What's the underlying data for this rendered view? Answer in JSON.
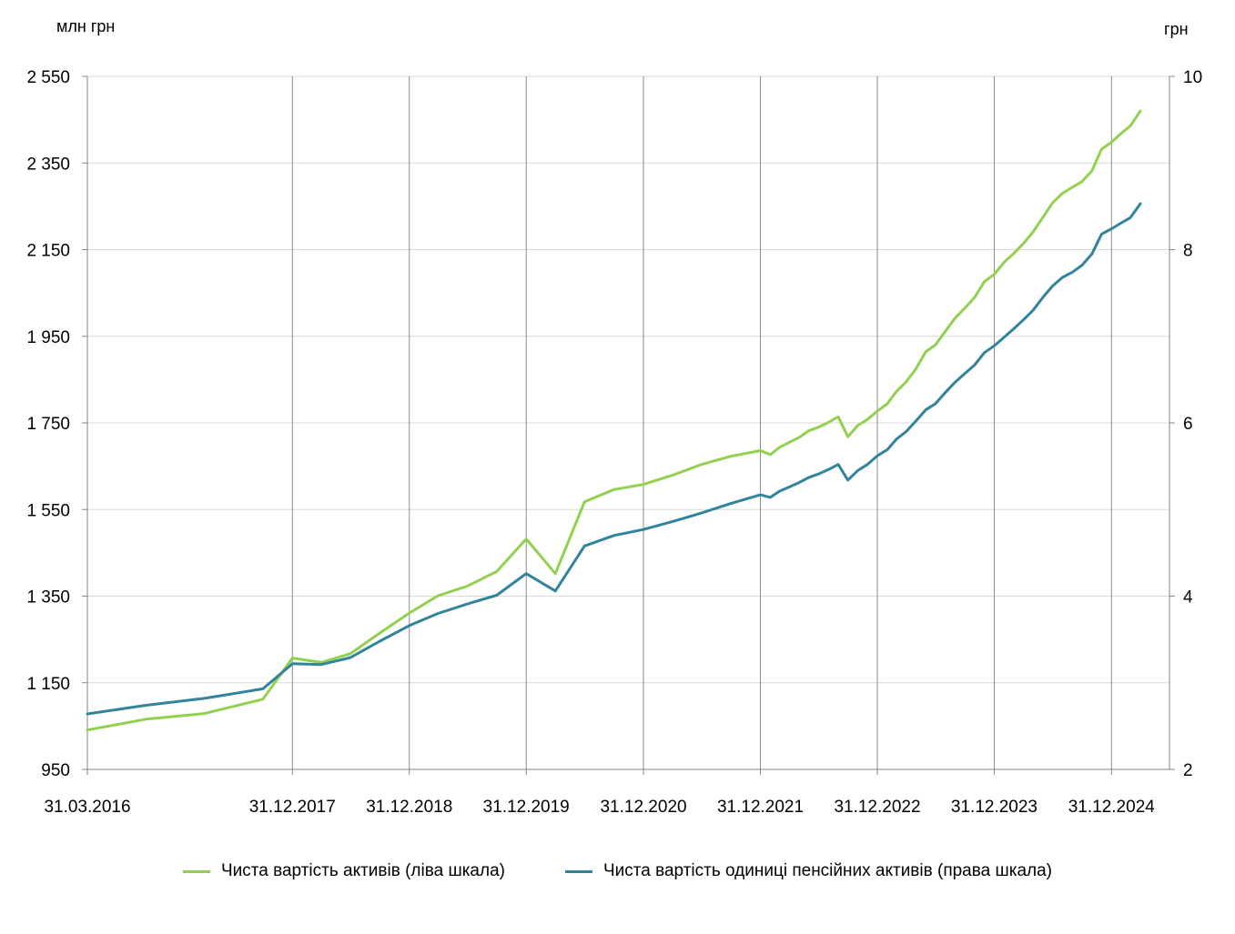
{
  "chart_data": {
    "type": "line",
    "left_axis": {
      "unit": "млн  грн",
      "ylim": [
        950,
        2550
      ],
      "ticks": [
        "950",
        "1 150",
        "1 350",
        "1 550",
        "1 750",
        "1 950",
        "2 150",
        "2 350",
        "2 550"
      ]
    },
    "right_axis": {
      "unit": "грн",
      "ylim": [
        2,
        10
      ],
      "ticks": [
        "2",
        "4",
        "6",
        "8",
        "10"
      ]
    },
    "x_tick_labels": [
      "31.03.2016",
      "31.12.2017",
      "31.12.2018",
      "31.12.2019",
      "31.12.2020",
      "31.12.2021",
      "31.12.2022",
      "31.12.2023",
      "31.12.2024"
    ],
    "xlim": [
      "31.03.2016",
      "30.06.2025"
    ],
    "grid": {
      "vertical": true,
      "horizontal": true
    },
    "legend_position": "bottom",
    "series": [
      {
        "name": "Чиста вартість активів (ліва шкала)",
        "axis": "left",
        "color": "#92d050",
        "points": [
          [
            "31.03.2016",
            1041
          ],
          [
            "30.09.2016",
            1066
          ],
          [
            "31.03.2017",
            1079
          ],
          [
            "30.09.2017",
            1112
          ],
          [
            "31.12.2017",
            1207
          ],
          [
            "31.03.2018",
            1197
          ],
          [
            "30.06.2018",
            1217
          ],
          [
            "30.09.2018",
            1265
          ],
          [
            "31.12.2018",
            1311
          ],
          [
            "31.03.2019",
            1351
          ],
          [
            "30.06.2019",
            1373
          ],
          [
            "30.09.2019",
            1407
          ],
          [
            "31.12.2019",
            1482
          ],
          [
            "31.03.2020",
            1402
          ],
          [
            "30.06.2020",
            1568
          ],
          [
            "30.09.2020",
            1596
          ],
          [
            "31.12.2020",
            1608
          ],
          [
            "31.03.2021",
            1629
          ],
          [
            "30.06.2021",
            1654
          ],
          [
            "30.09.2021",
            1673
          ],
          [
            "31.12.2021",
            1686
          ],
          [
            "31.01.2022",
            1677
          ],
          [
            "28.02.2022",
            1693
          ],
          [
            "31.03.2022",
            1705
          ],
          [
            "30.04.2022",
            1716
          ],
          [
            "31.05.2022",
            1732
          ],
          [
            "30.06.2022",
            1740
          ],
          [
            "31.07.2022",
            1751
          ],
          [
            "31.08.2022",
            1764
          ],
          [
            "30.09.2022",
            1718
          ],
          [
            "31.10.2022",
            1744
          ],
          [
            "30.11.2022",
            1758
          ],
          [
            "31.12.2022",
            1777
          ],
          [
            "31.01.2023",
            1794
          ],
          [
            "28.02.2023",
            1822
          ],
          [
            "31.03.2023",
            1845
          ],
          [
            "30.04.2023",
            1874
          ],
          [
            "31.05.2023",
            1914
          ],
          [
            "30.06.2023",
            1930
          ],
          [
            "31.07.2023",
            1961
          ],
          [
            "31.08.2023",
            1992
          ],
          [
            "30.09.2023",
            2015
          ],
          [
            "31.10.2023",
            2040
          ],
          [
            "30.11.2023",
            2076
          ],
          [
            "31.12.2023",
            2093
          ],
          [
            "31.01.2024",
            2121
          ],
          [
            "28.02.2024",
            2140
          ],
          [
            "31.03.2024",
            2164
          ],
          [
            "30.04.2024",
            2191
          ],
          [
            "31.05.2024",
            2225
          ],
          [
            "30.06.2024",
            2258
          ],
          [
            "31.07.2024",
            2280
          ],
          [
            "31.08.2024",
            2294
          ],
          [
            "30.09.2024",
            2307
          ],
          [
            "31.10.2024",
            2332
          ],
          [
            "30.11.2024",
            2382
          ],
          [
            "31.12.2024",
            2398
          ],
          [
            "31.01.2025",
            2419
          ],
          [
            "28.02.2025",
            2436
          ],
          [
            "31.03.2025",
            2470
          ]
        ]
      },
      {
        "name": "Чиста вартість одиниці  пенсійних  активів (права шкала)",
        "axis": "right",
        "color": "#31849b",
        "points": [
          [
            "31.03.2016",
            2.64
          ],
          [
            "30.09.2016",
            2.74
          ],
          [
            "31.03.2017",
            2.82
          ],
          [
            "30.09.2017",
            2.93
          ],
          [
            "31.12.2017",
            3.22
          ],
          [
            "31.03.2018",
            3.21
          ],
          [
            "30.06.2018",
            3.29
          ],
          [
            "30.09.2018",
            3.48
          ],
          [
            "31.12.2018",
            3.66
          ],
          [
            "31.03.2019",
            3.8
          ],
          [
            "30.06.2019",
            3.91
          ],
          [
            "30.09.2019",
            4.01
          ],
          [
            "31.12.2019",
            4.26
          ],
          [
            "31.03.2020",
            4.06
          ],
          [
            "30.06.2020",
            4.58
          ],
          [
            "30.09.2020",
            4.7
          ],
          [
            "31.12.2020",
            4.77
          ],
          [
            "31.03.2021",
            4.86
          ],
          [
            "30.06.2021",
            4.96
          ],
          [
            "30.09.2021",
            5.07
          ],
          [
            "31.12.2021",
            5.17
          ],
          [
            "31.01.2022",
            5.14
          ],
          [
            "28.02.2022",
            5.21
          ],
          [
            "31.03.2022",
            5.26
          ],
          [
            "30.04.2022",
            5.31
          ],
          [
            "31.05.2022",
            5.37
          ],
          [
            "30.06.2022",
            5.41
          ],
          [
            "31.07.2022",
            5.46
          ],
          [
            "31.08.2022",
            5.52
          ],
          [
            "30.09.2022",
            5.34
          ],
          [
            "31.10.2022",
            5.45
          ],
          [
            "30.11.2022",
            5.52
          ],
          [
            "31.12.2022",
            5.62
          ],
          [
            "31.01.2023",
            5.69
          ],
          [
            "28.02.2023",
            5.81
          ],
          [
            "31.03.2023",
            5.9
          ],
          [
            "30.04.2023",
            6.02
          ],
          [
            "31.05.2023",
            6.15
          ],
          [
            "30.06.2023",
            6.22
          ],
          [
            "31.07.2023",
            6.35
          ],
          [
            "31.08.2023",
            6.47
          ],
          [
            "30.09.2023",
            6.57
          ],
          [
            "31.10.2023",
            6.67
          ],
          [
            "30.11.2023",
            6.81
          ],
          [
            "31.12.2023",
            6.89
          ],
          [
            "31.01.2024",
            6.99
          ],
          [
            "28.02.2024",
            7.08
          ],
          [
            "31.03.2024",
            7.19
          ],
          [
            "30.04.2024",
            7.3
          ],
          [
            "31.05.2024",
            7.45
          ],
          [
            "30.06.2024",
            7.58
          ],
          [
            "31.07.2024",
            7.68
          ],
          [
            "31.08.2024",
            7.74
          ],
          [
            "30.09.2024",
            7.82
          ],
          [
            "31.10.2024",
            7.95
          ],
          [
            "30.11.2024",
            8.18
          ],
          [
            "31.12.2024",
            8.24
          ],
          [
            "31.01.2025",
            8.31
          ],
          [
            "28.02.2025",
            8.37
          ],
          [
            "31.03.2025",
            8.53
          ]
        ]
      }
    ]
  }
}
